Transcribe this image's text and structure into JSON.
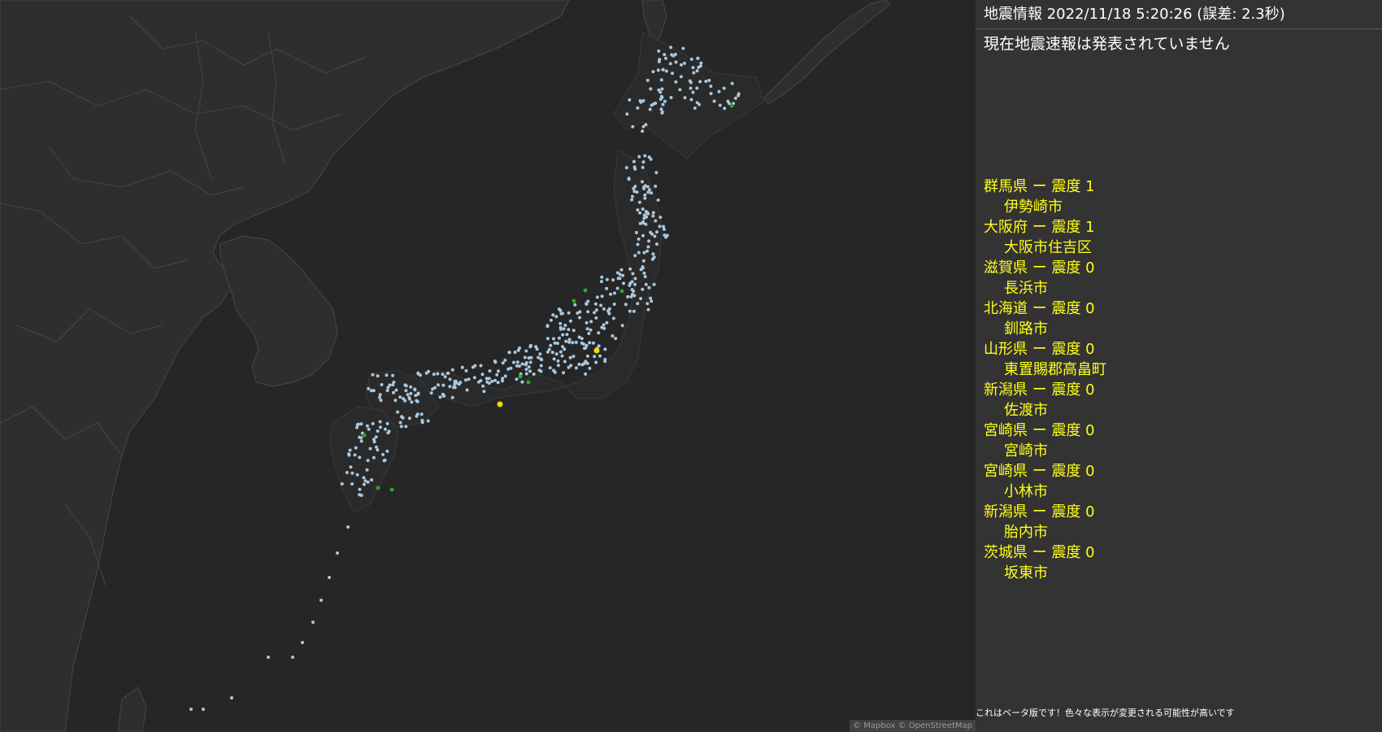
{
  "map": {
    "attribution": "© Mapbox © OpenStreetMap",
    "colors": {
      "sea": "#262626",
      "land": "#2e2e2e",
      "border": "#474747",
      "station": "#a8c8e0",
      "station_intensity_0": "#2aa72a",
      "station_intensity_1": "#ffd700"
    }
  },
  "panel": {
    "header": "地震情報 2022/11/18 5:20:26 (誤差: 2.3秒)",
    "eew_status": "現在地震速報は発表されていません",
    "observations": [
      {
        "prefecture": "群馬県 ー 震度 1",
        "city": "伊勢崎市"
      },
      {
        "prefecture": "大阪府 ー 震度 1",
        "city": "大阪市住吉区"
      },
      {
        "prefecture": "滋賀県 ー 震度 0",
        "city": "長浜市"
      },
      {
        "prefecture": "北海道 ー 震度 0",
        "city": "釧路市"
      },
      {
        "prefecture": "山形県 ー 震度 0",
        "city": "東置賜郡高畠町"
      },
      {
        "prefecture": "新潟県 ー 震度 0",
        "city": "佐渡市"
      },
      {
        "prefecture": "宮崎県 ー 震度 0",
        "city": "宮崎市"
      },
      {
        "prefecture": "宮崎県 ー 震度 0",
        "city": "小林市"
      },
      {
        "prefecture": "新潟県 ー 震度 0",
        "city": "胎内市"
      },
      {
        "prefecture": "茨城県 ー 震度 0",
        "city": "坂東市"
      }
    ],
    "beta_note": "これはベータ版です！色々な表示が変更される可能性が高いです",
    "text_color": "#ffff1a"
  }
}
